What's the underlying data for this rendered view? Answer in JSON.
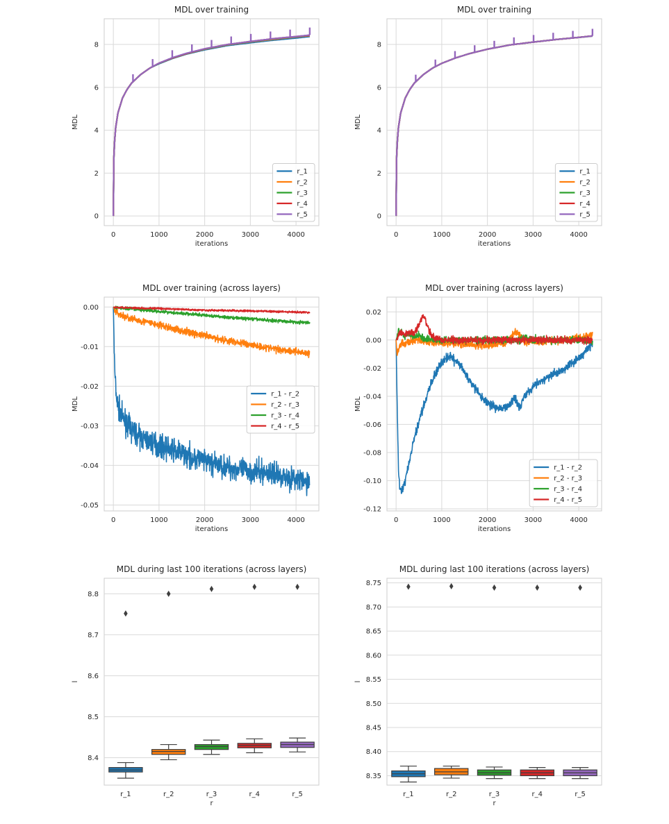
{
  "palette": [
    "#1f77b4",
    "#ff7f0e",
    "#2ca02c",
    "#d62728",
    "#9467bd"
  ],
  "chart_data": [
    {
      "id": "top-left",
      "type": "line",
      "title": "MDL over training",
      "xlabel": "iterations",
      "ylabel": "MDL",
      "xlim": [
        -200,
        4500
      ],
      "ylim": [
        -0.45,
        9.2
      ],
      "xticks": [
        0,
        1000,
        2000,
        3000,
        4000
      ],
      "yticks": [
        0,
        2,
        4,
        6,
        8
      ],
      "grid": true,
      "legend": "lower-right",
      "x": [
        0,
        10,
        25,
        50,
        100,
        200,
        300,
        400,
        600,
        800,
        1000,
        1300,
        1600,
        2000,
        2500,
        3000,
        3500,
        4000,
        4300
      ],
      "series": [
        {
          "name": "r_1",
          "values": [
            0,
            2.6,
            3.4,
            4.1,
            4.8,
            5.5,
            5.9,
            6.2,
            6.6,
            6.9,
            7.1,
            7.35,
            7.55,
            7.75,
            7.95,
            8.08,
            8.2,
            8.3,
            8.37
          ]
        },
        {
          "name": "r_2",
          "values": [
            0,
            2.6,
            3.4,
            4.1,
            4.8,
            5.5,
            5.9,
            6.2,
            6.6,
            6.9,
            7.12,
            7.37,
            7.57,
            7.78,
            7.98,
            8.12,
            8.24,
            8.35,
            8.41
          ]
        },
        {
          "name": "r_3",
          "values": [
            0,
            2.6,
            3.4,
            4.1,
            4.8,
            5.5,
            5.9,
            6.2,
            6.6,
            6.9,
            7.12,
            7.38,
            7.58,
            7.79,
            7.99,
            8.13,
            8.26,
            8.36,
            8.43
          ]
        },
        {
          "name": "r_4",
          "values": [
            0,
            2.6,
            3.4,
            4.1,
            4.8,
            5.5,
            5.9,
            6.2,
            6.6,
            6.9,
            7.13,
            7.38,
            7.58,
            7.8,
            8.0,
            8.14,
            8.27,
            8.37,
            8.43
          ]
        },
        {
          "name": "r_5",
          "values": [
            0,
            2.6,
            3.4,
            4.1,
            4.8,
            5.5,
            5.9,
            6.2,
            6.6,
            6.9,
            7.13,
            7.39,
            7.59,
            7.8,
            8.0,
            8.14,
            8.27,
            8.37,
            8.44
          ]
        }
      ],
      "spikes": {
        "series": 4,
        "x": [
          430,
          860,
          1290,
          1720,
          2150,
          2580,
          3010,
          3440,
          3870,
          4300
        ],
        "height": 0.35
      }
    },
    {
      "id": "top-right",
      "type": "line",
      "title": "MDL over training",
      "xlabel": "iterations",
      "ylabel": "MDL",
      "xlim": [
        -200,
        4500
      ],
      "ylim": [
        -0.45,
        9.2
      ],
      "xticks": [
        0,
        1000,
        2000,
        3000,
        4000
      ],
      "yticks": [
        0,
        2,
        4,
        6,
        8
      ],
      "grid": true,
      "legend": "lower-right",
      "x": [
        0,
        10,
        25,
        50,
        100,
        200,
        300,
        400,
        600,
        800,
        1000,
        1300,
        1600,
        2000,
        2500,
        3000,
        3500,
        4000,
        4300
      ],
      "series": [
        {
          "name": "r_1",
          "values": [
            0,
            2.6,
            3.4,
            4.1,
            4.8,
            5.5,
            5.9,
            6.2,
            6.6,
            6.9,
            7.12,
            7.37,
            7.57,
            7.78,
            7.98,
            8.11,
            8.23,
            8.33,
            8.39
          ]
        },
        {
          "name": "r_2",
          "values": [
            0,
            2.6,
            3.4,
            4.1,
            4.8,
            5.5,
            5.9,
            6.2,
            6.6,
            6.9,
            7.12,
            7.37,
            7.57,
            7.78,
            7.98,
            8.11,
            8.23,
            8.33,
            8.4
          ]
        },
        {
          "name": "r_3",
          "values": [
            0,
            2.6,
            3.4,
            4.1,
            4.8,
            5.5,
            5.9,
            6.2,
            6.6,
            6.9,
            7.12,
            7.37,
            7.57,
            7.78,
            7.98,
            8.11,
            8.23,
            8.33,
            8.4
          ]
        },
        {
          "name": "r_4",
          "values": [
            0,
            2.6,
            3.4,
            4.1,
            4.8,
            5.5,
            5.9,
            6.2,
            6.6,
            6.9,
            7.12,
            7.37,
            7.57,
            7.78,
            7.98,
            8.11,
            8.23,
            8.33,
            8.4
          ]
        },
        {
          "name": "r_5",
          "values": [
            0,
            2.6,
            3.4,
            4.1,
            4.8,
            5.5,
            5.9,
            6.2,
            6.6,
            6.9,
            7.12,
            7.37,
            7.57,
            7.78,
            7.98,
            8.11,
            8.23,
            8.33,
            8.4
          ]
        }
      ],
      "spikes": {
        "series": 4,
        "x": [
          430,
          860,
          1290,
          1720,
          2150,
          2580,
          3010,
          3440,
          3870,
          4300
        ],
        "height": 0.33
      }
    },
    {
      "id": "mid-left",
      "type": "line",
      "title": "MDL over training (across layers)",
      "xlabel": "iterations",
      "ylabel": "MDL",
      "xlim": [
        -200,
        4500
      ],
      "ylim": [
        -0.0515,
        0.0025
      ],
      "xticks": [
        0,
        1000,
        2000,
        3000,
        4000
      ],
      "yticks": [
        0.0,
        -0.01,
        -0.02,
        -0.03,
        -0.04,
        -0.05
      ],
      "ytick_labels": [
        "0.00",
        "-0.01",
        "-0.02",
        "-0.03",
        "-0.04",
        "-0.05"
      ],
      "grid": true,
      "legend": "center-right",
      "x": [
        0,
        30,
        60,
        100,
        200,
        400,
        600,
        800,
        1000,
        1500,
        2000,
        2500,
        3000,
        3500,
        4000,
        4300
      ],
      "series": [
        {
          "name": "r_1 - r_2",
          "values": [
            0,
            -0.016,
            -0.022,
            -0.025,
            -0.028,
            -0.031,
            -0.033,
            -0.034,
            -0.035,
            -0.037,
            -0.039,
            -0.0405,
            -0.0415,
            -0.042,
            -0.0435,
            -0.0445
          ],
          "noise": 0.0028
        },
        {
          "name": "r_2 - r_3",
          "values": [
            0,
            -0.0008,
            -0.0012,
            -0.0016,
            -0.0022,
            -0.003,
            -0.0035,
            -0.004,
            -0.0046,
            -0.006,
            -0.0073,
            -0.0085,
            -0.0095,
            -0.0105,
            -0.0112,
            -0.0118
          ],
          "noise": 0.0009
        },
        {
          "name": "r_3 - r_4",
          "values": [
            0,
            -0.0001,
            -0.0002,
            -0.0002,
            -0.0003,
            -0.0005,
            -0.0007,
            -0.0009,
            -0.0011,
            -0.0016,
            -0.0021,
            -0.0026,
            -0.003,
            -0.0034,
            -0.0038,
            -0.004
          ],
          "noise": 0.0004
        },
        {
          "name": "r_4 - r_5",
          "values": [
            0,
            0,
            -0.0001,
            -0.0001,
            -0.0001,
            -0.0002,
            -0.0003,
            -0.0003,
            -0.0004,
            -0.0006,
            -0.0008,
            -0.0009,
            -0.001,
            -0.0011,
            -0.0013,
            -0.0014
          ],
          "noise": 0.00025
        }
      ]
    },
    {
      "id": "mid-right",
      "type": "line",
      "title": "MDL over training (across layers)",
      "xlabel": "iterations",
      "ylabel": "MDL",
      "xlim": [
        -200,
        4500
      ],
      "ylim": [
        -0.1215,
        0.0305
      ],
      "xticks": [
        0,
        1000,
        2000,
        3000,
        4000
      ],
      "yticks": [
        0.02,
        0.0,
        -0.02,
        -0.04,
        -0.06,
        -0.08,
        -0.1,
        -0.12
      ],
      "ytick_labels": [
        "0.02",
        "0.00",
        "-0.02",
        "-0.04",
        "-0.06",
        "-0.08",
        "-0.10",
        "-0.12"
      ],
      "grid": true,
      "legend": "lower-right",
      "x": [
        0,
        20,
        50,
        80,
        120,
        200,
        300,
        400,
        500,
        600,
        700,
        800,
        900,
        1000,
        1100,
        1200,
        1400,
        1600,
        1800,
        2000,
        2200,
        2400,
        2500,
        2600,
        2700,
        2800,
        3000,
        3300,
        3600,
        3900,
        4100,
        4300
      ],
      "series": [
        {
          "name": "r_1 - r_2",
          "values": [
            0,
            -0.04,
            -0.09,
            -0.105,
            -0.108,
            -0.1,
            -0.085,
            -0.07,
            -0.058,
            -0.047,
            -0.037,
            -0.029,
            -0.021,
            -0.016,
            -0.013,
            -0.012,
            -0.018,
            -0.028,
            -0.038,
            -0.045,
            -0.048,
            -0.049,
            -0.045,
            -0.04,
            -0.048,
            -0.04,
            -0.033,
            -0.027,
            -0.022,
            -0.015,
            -0.01,
            -0.002
          ],
          "noise": 0.003
        },
        {
          "name": "r_2 - r_3",
          "values": [
            0,
            -0.01,
            -0.008,
            -0.004,
            -0.002,
            -0.003,
            -0.001,
            0,
            0,
            -0.001,
            -0.001,
            -0.002,
            -0.002,
            -0.002,
            -0.002,
            -0.002,
            -0.003,
            -0.003,
            -0.004,
            -0.004,
            -0.003,
            -0.002,
            0.002,
            0.006,
            0.004,
            -0.001,
            -0.001,
            -0.001,
            0,
            0.001,
            0.002,
            0.004
          ],
          "noise": 0.0025
        },
        {
          "name": "r_3 - r_4",
          "values": [
            0,
            0.002,
            0.007,
            0.004,
            0.006,
            0.003,
            0.005,
            0.002,
            0.004,
            0.001,
            0.001,
            0,
            0,
            0,
            0,
            0,
            0,
            0,
            0,
            0,
            0,
            0,
            0,
            0,
            0,
            0.002,
            0,
            0,
            0,
            0,
            0,
            0
          ],
          "noise": 0.0025
        },
        {
          "name": "r_4 - r_5",
          "values": [
            0,
            0.001,
            0.003,
            0.004,
            0.005,
            0.004,
            0.006,
            0.005,
            0.011,
            0.018,
            0.009,
            0.002,
            0.001,
            0,
            0,
            0,
            0,
            0,
            0,
            0,
            0,
            0,
            0,
            0,
            0,
            0,
            0,
            0,
            0,
            0,
            0,
            0
          ],
          "noise": 0.0025
        }
      ]
    },
    {
      "id": "bottom-left",
      "type": "box",
      "title": "MDL during last 100 iterations (across layers)",
      "xlabel": "r",
      "ylabel": "l",
      "ylim": [
        8.333,
        8.838
      ],
      "yticks": [
        8.4,
        8.5,
        8.6,
        8.7,
        8.8
      ],
      "ytick_labels": [
        "8.4",
        "8.5",
        "8.6",
        "8.7",
        "8.8"
      ],
      "grid": true,
      "categories": [
        "r_1",
        "r_2",
        "r_3",
        "r_4",
        "r_5"
      ],
      "boxes": [
        {
          "whislo": 8.35,
          "q1": 8.365,
          "med": 8.37,
          "q3": 8.376,
          "whishi": 8.388,
          "flier": 8.752
        },
        {
          "whislo": 8.395,
          "q1": 8.408,
          "med": 8.415,
          "q3": 8.42,
          "whishi": 8.432,
          "flier": 8.8
        },
        {
          "whislo": 8.408,
          "q1": 8.42,
          "med": 8.427,
          "q3": 8.432,
          "whishi": 8.443,
          "flier": 8.812
        },
        {
          "whislo": 8.412,
          "q1": 8.424,
          "med": 8.43,
          "q3": 8.435,
          "whishi": 8.446,
          "flier": 8.817
        },
        {
          "whislo": 8.414,
          "q1": 8.425,
          "med": 8.432,
          "q3": 8.438,
          "whishi": 8.448,
          "flier": 8.817
        }
      ]
    },
    {
      "id": "bottom-right",
      "type": "box",
      "title": "MDL during last 100 iterations (across layers)",
      "xlabel": "r",
      "ylabel": "l",
      "ylim": [
        8.3305,
        8.7595
      ],
      "yticks": [
        8.35,
        8.4,
        8.45,
        8.5,
        8.55,
        8.6,
        8.65,
        8.7,
        8.75
      ],
      "ytick_labels": [
        "8.35",
        "8.40",
        "8.45",
        "8.50",
        "8.55",
        "8.60",
        "8.65",
        "8.70",
        "8.75"
      ],
      "grid": true,
      "categories": [
        "r_1",
        "r_2",
        "r_3",
        "r_4",
        "r_5"
      ],
      "boxes": [
        {
          "whislo": 8.337,
          "q1": 8.348,
          "med": 8.354,
          "q3": 8.36,
          "whishi": 8.37,
          "flier": 8.742
        },
        {
          "whislo": 8.345,
          "q1": 8.352,
          "med": 8.358,
          "q3": 8.365,
          "whishi": 8.37,
          "flier": 8.743
        },
        {
          "whislo": 8.344,
          "q1": 8.351,
          "med": 8.356,
          "q3": 8.362,
          "whishi": 8.368,
          "flier": 8.74
        },
        {
          "whislo": 8.344,
          "q1": 8.35,
          "med": 8.356,
          "q3": 8.362,
          "whishi": 8.367,
          "flier": 8.74
        },
        {
          "whislo": 8.344,
          "q1": 8.35,
          "med": 8.356,
          "q3": 8.362,
          "whishi": 8.367,
          "flier": 8.74
        }
      ]
    }
  ]
}
